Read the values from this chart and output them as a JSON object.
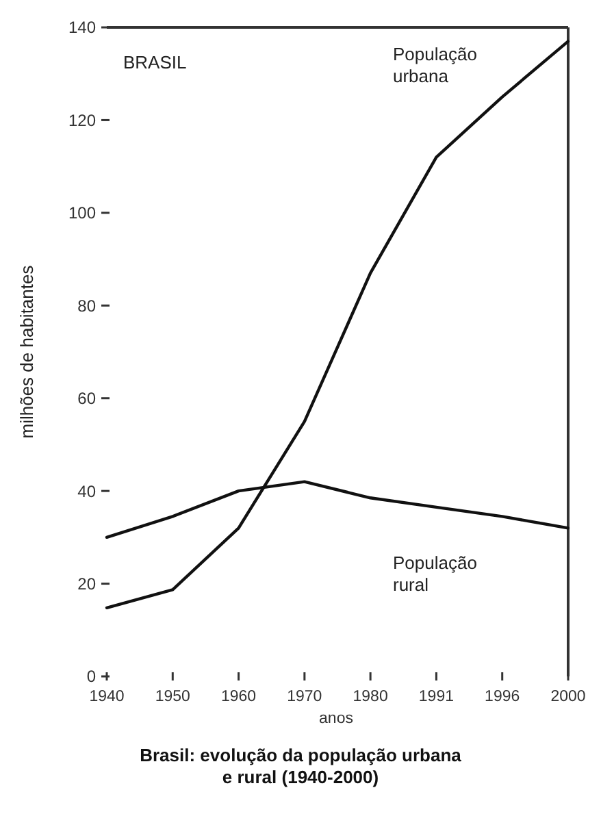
{
  "chart_data": {
    "type": "line",
    "title": "Brasil: evolução da população urbana e rural (1940-2000)",
    "xlabel": "anos",
    "ylabel": "milhões de habitantes",
    "categories": [
      "1940",
      "1950",
      "1960",
      "1970",
      "1980",
      "1991",
      "1996",
      "2000"
    ],
    "series": [
      {
        "name": "População urbana",
        "color": "#111111",
        "values": [
          14.8,
          18.7,
          32,
          55,
          87,
          112,
          125,
          137
        ]
      },
      {
        "name": "População rural",
        "color": "#111111",
        "values": [
          30,
          34.5,
          40,
          42,
          38.5,
          36.5,
          34.5,
          32
        ]
      }
    ],
    "ylim": [
      0,
      140
    ],
    "yticks": [
      0,
      20,
      40,
      60,
      80,
      100,
      120,
      140
    ],
    "grid": false,
    "legend": false,
    "marker": "none",
    "line_style": "solid",
    "annotations": [
      "BRASIL"
    ]
  }
}
